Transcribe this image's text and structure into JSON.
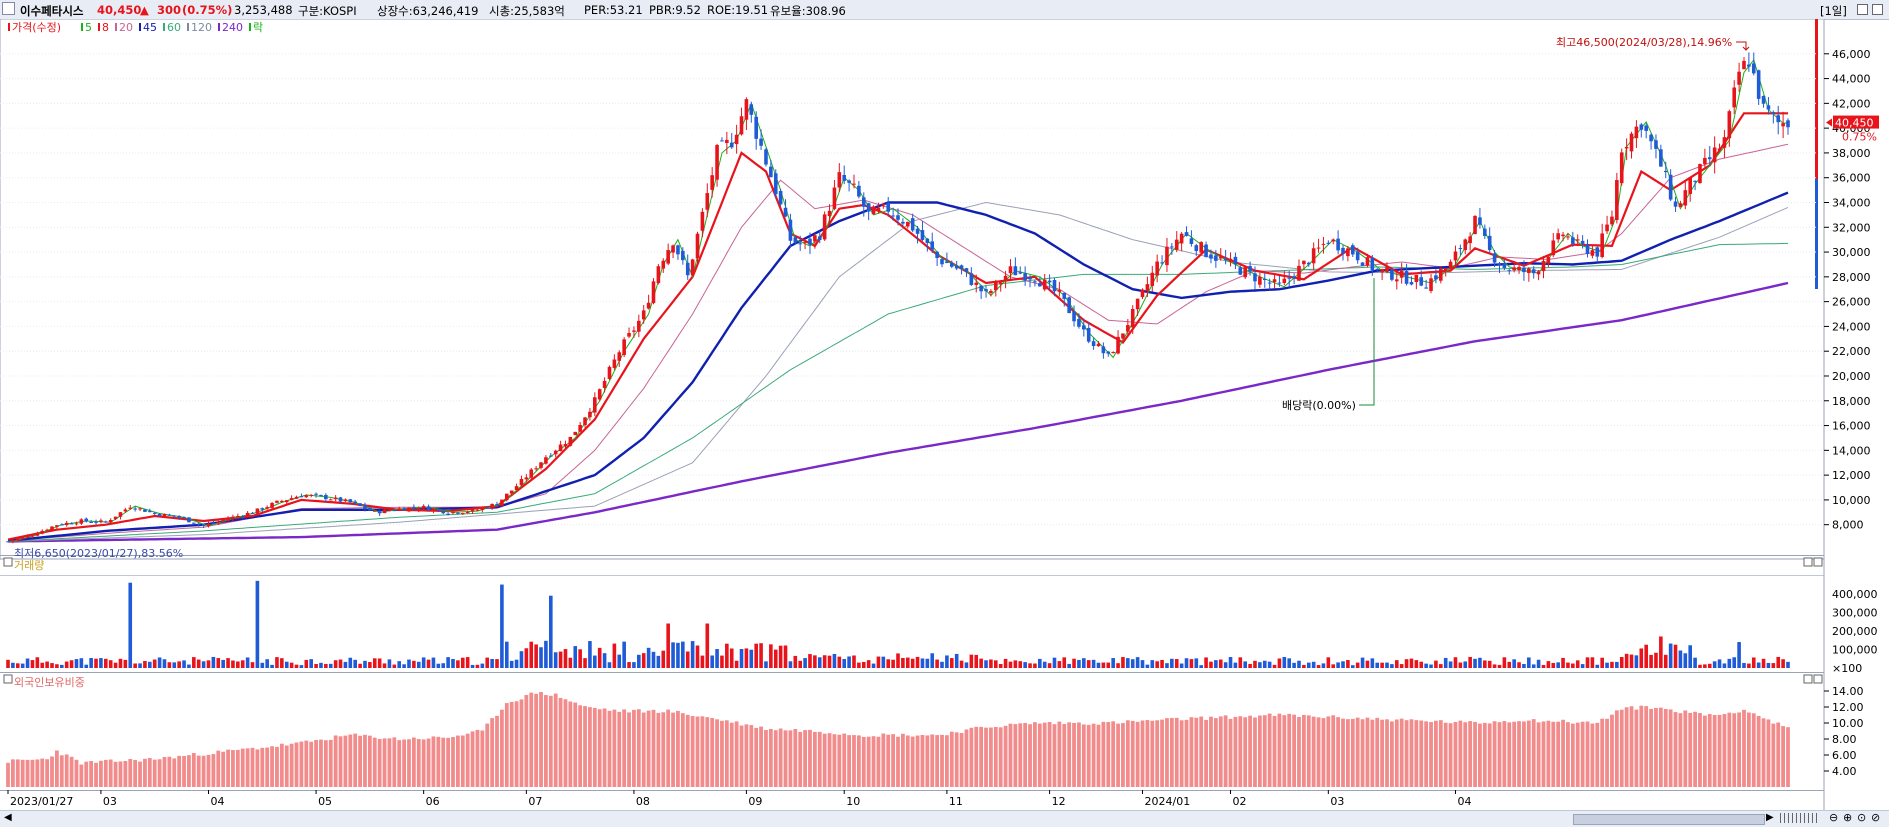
{
  "header": {
    "stock_name": "이수페타시스",
    "price": "40,450",
    "change_arrow": "▲",
    "change": "300",
    "change_pct": "(0.75%)",
    "volume": "3,253,488",
    "market": "구분:KOSPI",
    "shares": "상장수:63,246,419",
    "market_cap": "시총:25,583억",
    "per": "PER:53.21",
    "pbr": "PBR:9.52",
    "roe": "ROE:19.51",
    "float": "유보율:308.96",
    "period": "[1일]"
  },
  "colors": {
    "up": "#e8141c",
    "down": "#1f5bd6",
    "ma5": "#1ab21a",
    "ma8": "#e8141c",
    "ma20": "#c86496",
    "ma45": "#1020b0",
    "ma60": "#3aaa78",
    "ma120": "#9aa0b8",
    "ma240": "#7a28c8",
    "volume_up": "#e8141c",
    "volume_down": "#1f5bd6",
    "foreign": "#f28c8c"
  },
  "chart_data": [
    {
      "type": "candlestick",
      "title": "가격(수정)",
      "legend": [
        {
          "name": "가격(수정)",
          "color": "#e8141c"
        },
        {
          "name": "5",
          "color": "#1ab21a"
        },
        {
          "name": "8",
          "color": "#e8141c"
        },
        {
          "name": "20",
          "color": "#c86496"
        },
        {
          "name": "45",
          "color": "#1020b0"
        },
        {
          "name": "60",
          "color": "#3aaa78"
        },
        {
          "name": "120",
          "color": "#7a8aa8"
        },
        {
          "name": "240",
          "color": "#7a28c8"
        },
        {
          "name": "락",
          "color": "#1ab21a"
        }
      ],
      "ylim": [
        6200,
        48000
      ],
      "y_ticks": [
        "8,000",
        "10,000",
        "12,000",
        "14,000",
        "16,000",
        "18,000",
        "20,000",
        "22,000",
        "24,000",
        "26,000",
        "28,000",
        "30,000",
        "32,000",
        "34,000",
        "36,000",
        "38,000",
        "40,000",
        "42,000",
        "44,000",
        "46,000"
      ],
      "current_price_label": "40,450",
      "current_pct_label": "0.75%",
      "annotations": {
        "high": "최고46,500(2024/03/28),14.96%",
        "low": "최저6,650(2023/01/27),83.56%",
        "dividend": "배당락(0.00%)"
      },
      "x_labels": [
        "2023/01/27",
        "03",
        "04",
        "05",
        "06",
        "07",
        "08",
        "09",
        "10",
        "11",
        "12",
        "2024/01",
        "02",
        "03",
        "04"
      ],
      "price_path": [
        [
          0,
          6650
        ],
        [
          5,
          7200
        ],
        [
          10,
          8000
        ],
        [
          15,
          8300
        ],
        [
          20,
          8200
        ],
        [
          25,
          9500
        ],
        [
          30,
          8900
        ],
        [
          35,
          8600
        ],
        [
          40,
          7900
        ],
        [
          45,
          8500
        ],
        [
          50,
          9000
        ],
        [
          55,
          9800
        ],
        [
          60,
          10400
        ],
        [
          65,
          10200
        ],
        [
          70,
          9800
        ],
        [
          75,
          9000
        ],
        [
          80,
          9300
        ],
        [
          85,
          9400
        ],
        [
          90,
          9000
        ],
        [
          95,
          9100
        ],
        [
          100,
          9700
        ],
        [
          105,
          11500
        ],
        [
          110,
          13500
        ],
        [
          115,
          15000
        ],
        [
          120,
          18000
        ],
        [
          125,
          22000
        ],
        [
          130,
          25000
        ],
        [
          133,
          29000
        ],
        [
          136,
          31000
        ],
        [
          139,
          28000
        ],
        [
          142,
          33000
        ],
        [
          145,
          38000
        ],
        [
          148,
          39000
        ],
        [
          151,
          42000
        ],
        [
          154,
          38500
        ],
        [
          157,
          35000
        ],
        [
          160,
          31000
        ],
        [
          163,
          30500
        ],
        [
          166,
          31500
        ],
        [
          170,
          36000
        ],
        [
          173,
          35000
        ],
        [
          176,
          33000
        ],
        [
          180,
          33500
        ],
        [
          185,
          32000
        ],
        [
          190,
          29500
        ],
        [
          195,
          28500
        ],
        [
          200,
          26500
        ],
        [
          205,
          28500
        ],
        [
          210,
          28000
        ],
        [
          215,
          26500
        ],
        [
          220,
          23500
        ],
        [
          225,
          21500
        ],
        [
          230,
          25000
        ],
        [
          235,
          29000
        ],
        [
          240,
          31500
        ],
        [
          245,
          30000
        ],
        [
          250,
          29000
        ],
        [
          255,
          28000
        ],
        [
          260,
          27200
        ],
        [
          265,
          29000
        ],
        [
          270,
          31000
        ],
        [
          275,
          30000
        ],
        [
          280,
          28500
        ],
        [
          285,
          28000
        ],
        [
          290,
          27500
        ],
        [
          295,
          29000
        ],
        [
          300,
          32500
        ],
        [
          303,
          30000
        ],
        [
          306,
          28800
        ],
        [
          309,
          28500
        ],
        [
          312,
          28300
        ],
        [
          315,
          30000
        ],
        [
          318,
          31500
        ],
        [
          321,
          30500
        ],
        [
          325,
          30000
        ],
        [
          328,
          33000
        ],
        [
          330,
          38500
        ],
        [
          334,
          40500
        ],
        [
          338,
          37000
        ],
        [
          341,
          33500
        ],
        [
          344,
          35500
        ],
        [
          348,
          37500
        ],
        [
          351,
          39000
        ],
        [
          354,
          44500
        ],
        [
          356,
          45500
        ],
        [
          359,
          41500
        ],
        [
          362,
          40400
        ],
        [
          364,
          40450
        ]
      ],
      "ma8_path": [
        [
          0,
          6800
        ],
        [
          10,
          7600
        ],
        [
          20,
          8000
        ],
        [
          30,
          8700
        ],
        [
          40,
          8300
        ],
        [
          50,
          8700
        ],
        [
          60,
          10000
        ],
        [
          70,
          9700
        ],
        [
          80,
          9200
        ],
        [
          90,
          9100
        ],
        [
          100,
          9500
        ],
        [
          110,
          12500
        ],
        [
          120,
          16500
        ],
        [
          130,
          23000
        ],
        [
          140,
          28000
        ],
        [
          145,
          33000
        ],
        [
          150,
          38000
        ],
        [
          155,
          36500
        ],
        [
          160,
          31500
        ],
        [
          165,
          30500
        ],
        [
          170,
          33500
        ],
        [
          175,
          33800
        ],
        [
          180,
          33000
        ],
        [
          190,
          29800
        ],
        [
          200,
          27500
        ],
        [
          210,
          28000
        ],
        [
          220,
          24500
        ],
        [
          228,
          22700
        ],
        [
          235,
          26500
        ],
        [
          245,
          30200
        ],
        [
          255,
          28500
        ],
        [
          265,
          27800
        ],
        [
          275,
          30400
        ],
        [
          285,
          28200
        ],
        [
          295,
          28500
        ],
        [
          300,
          30300
        ],
        [
          310,
          28900
        ],
        [
          320,
          30600
        ],
        [
          328,
          30500
        ],
        [
          334,
          36500
        ],
        [
          340,
          35000
        ],
        [
          348,
          37000
        ],
        [
          355,
          41200
        ],
        [
          364,
          41200
        ]
      ],
      "ma45_path": [
        [
          0,
          6700
        ],
        [
          20,
          7500
        ],
        [
          40,
          8000
        ],
        [
          60,
          9200
        ],
        [
          80,
          9200
        ],
        [
          100,
          9400
        ],
        [
          120,
          12000
        ],
        [
          130,
          15000
        ],
        [
          140,
          19500
        ],
        [
          150,
          25500
        ],
        [
          160,
          30500
        ],
        [
          170,
          32500
        ],
        [
          180,
          34000
        ],
        [
          190,
          34000
        ],
        [
          200,
          33000
        ],
        [
          210,
          31500
        ],
        [
          220,
          29000
        ],
        [
          230,
          27000
        ],
        [
          240,
          26300
        ],
        [
          250,
          26800
        ],
        [
          260,
          27000
        ],
        [
          270,
          27700
        ],
        [
          280,
          28500
        ],
        [
          290,
          28700
        ],
        [
          300,
          28900
        ],
        [
          310,
          29100
        ],
        [
          320,
          29000
        ],
        [
          330,
          29300
        ],
        [
          340,
          31000
        ],
        [
          350,
          32500
        ],
        [
          364,
          34800
        ]
      ],
      "ma20_path": [
        [
          0,
          6700
        ],
        [
          20,
          7300
        ],
        [
          40,
          7800
        ],
        [
          60,
          9300
        ],
        [
          80,
          9400
        ],
        [
          100,
          9400
        ],
        [
          110,
          10500
        ],
        [
          120,
          14000
        ],
        [
          130,
          19000
        ],
        [
          140,
          25000
        ],
        [
          150,
          32000
        ],
        [
          158,
          35800
        ],
        [
          165,
          33500
        ],
        [
          175,
          34200
        ],
        [
          185,
          33000
        ],
        [
          195,
          30500
        ],
        [
          205,
          28000
        ],
        [
          215,
          27000
        ],
        [
          225,
          24500
        ],
        [
          235,
          24200
        ],
        [
          245,
          26800
        ],
        [
          255,
          28500
        ],
        [
          265,
          28300
        ],
        [
          275,
          28800
        ],
        [
          285,
          29200
        ],
        [
          295,
          28700
        ],
        [
          305,
          29600
        ],
        [
          315,
          29400
        ],
        [
          325,
          30000
        ],
        [
          330,
          31500
        ],
        [
          340,
          36000
        ],
        [
          350,
          37500
        ],
        [
          364,
          38700
        ]
      ],
      "ma60_path": [
        [
          0,
          6650
        ],
        [
          40,
          7500
        ],
        [
          80,
          8600
        ],
        [
          100,
          9000
        ],
        [
          120,
          10500
        ],
        [
          140,
          15000
        ],
        [
          160,
          20500
        ],
        [
          180,
          25000
        ],
        [
          200,
          27300
        ],
        [
          220,
          28200
        ],
        [
          240,
          28200
        ],
        [
          260,
          28500
        ],
        [
          280,
          28800
        ],
        [
          300,
          28600
        ],
        [
          320,
          28800
        ],
        [
          330,
          29000
        ],
        [
          350,
          30600
        ],
        [
          364,
          30700
        ]
      ],
      "ma120_path": [
        [
          0,
          6650
        ],
        [
          40,
          7200
        ],
        [
          80,
          8200
        ],
        [
          120,
          9500
        ],
        [
          140,
          13000
        ],
        [
          155,
          20000
        ],
        [
          170,
          28000
        ],
        [
          185,
          32500
        ],
        [
          200,
          34000
        ],
        [
          215,
          33000
        ],
        [
          230,
          31000
        ],
        [
          250,
          29200
        ],
        [
          270,
          28400
        ],
        [
          290,
          28300
        ],
        [
          310,
          28500
        ],
        [
          330,
          28600
        ],
        [
          350,
          31200
        ],
        [
          364,
          33600
        ]
      ],
      "ma240_path": [
        [
          0,
          6650
        ],
        [
          60,
          7000
        ],
        [
          100,
          7600
        ],
        [
          120,
          9000
        ],
        [
          150,
          11500
        ],
        [
          180,
          13800
        ],
        [
          210,
          15800
        ],
        [
          240,
          18000
        ],
        [
          270,
          20500
        ],
        [
          300,
          22800
        ],
        [
          330,
          24500
        ],
        [
          364,
          27500
        ]
      ],
      "dividend_index": 280,
      "high_index": 356,
      "low_index": 0
    },
    {
      "type": "bar",
      "title": "거래량",
      "ylim": [
        0,
        480000
      ],
      "y_ticks": [
        "400,000",
        "300,000",
        "200,000",
        "100,000",
        "×100"
      ],
      "peaks": [
        [
          25,
          460000
        ],
        [
          51,
          470000
        ],
        [
          101,
          450000
        ],
        [
          111,
          390000
        ],
        [
          135,
          240000
        ],
        [
          143,
          240000
        ],
        [
          338,
          170000
        ],
        [
          354,
          140000
        ]
      ]
    },
    {
      "type": "bar",
      "title": "외국인보유비중",
      "ylim": [
        2.0,
        14.5
      ],
      "y_ticks": [
        "14.00",
        "12.00",
        "10.00",
        "8.00",
        "6.00",
        "4.00"
      ],
      "profile": [
        [
          0,
          5.2
        ],
        [
          8,
          5.5
        ],
        [
          10,
          6.5
        ],
        [
          15,
          5.0
        ],
        [
          30,
          5.5
        ],
        [
          50,
          6.8
        ],
        [
          60,
          7.5
        ],
        [
          70,
          8.5
        ],
        [
          80,
          8.0
        ],
        [
          90,
          8.2
        ],
        [
          97,
          9.0
        ],
        [
          102,
          12.5
        ],
        [
          108,
          13.8
        ],
        [
          112,
          13.5
        ],
        [
          118,
          12.0
        ],
        [
          125,
          11.5
        ],
        [
          135,
          11.5
        ],
        [
          145,
          10.5
        ],
        [
          155,
          9.3
        ],
        [
          165,
          9.0
        ],
        [
          175,
          8.5
        ],
        [
          190,
          8.5
        ],
        [
          200,
          9.5
        ],
        [
          210,
          10.0
        ],
        [
          225,
          10.0
        ],
        [
          240,
          10.5
        ],
        [
          260,
          11.0
        ],
        [
          280,
          10.5
        ],
        [
          300,
          10.0
        ],
        [
          310,
          10.4
        ],
        [
          325,
          10.0
        ],
        [
          330,
          11.8
        ],
        [
          336,
          12.0
        ],
        [
          345,
          11.2
        ],
        [
          350,
          11.0
        ],
        [
          355,
          11.7
        ],
        [
          364,
          9.3
        ]
      ]
    }
  ]
}
